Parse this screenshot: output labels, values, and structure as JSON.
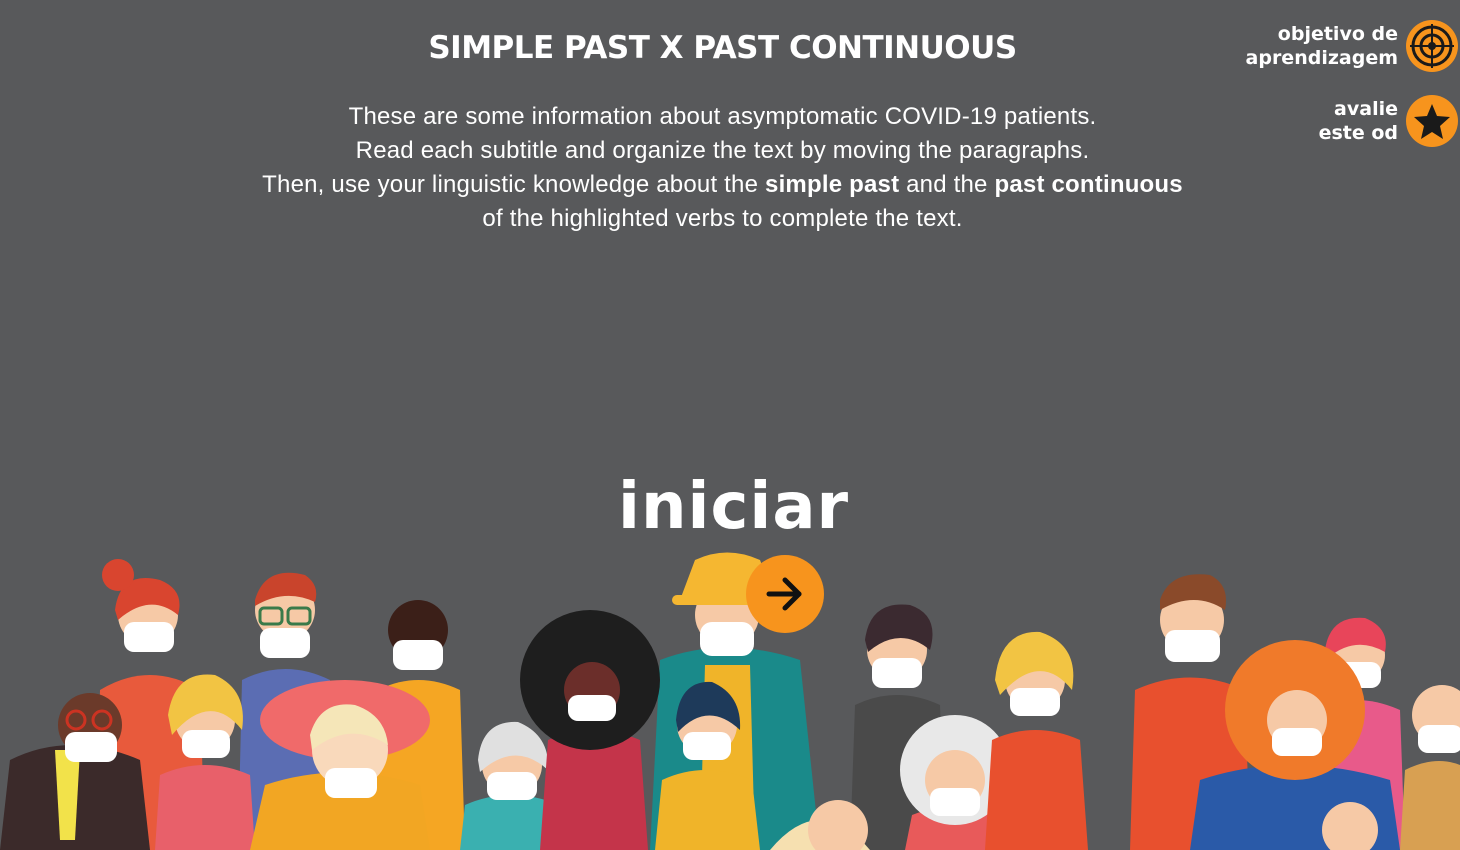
{
  "header": {
    "title": "SIMPLE PAST X PAST CONTINUOUS"
  },
  "instructions": {
    "line1": "These are some information about asymptomatic COVID-19 patients.",
    "line2": "Read each subtitle and organize the text by moving the paragraphs.",
    "line3_pre": "Then, use your linguistic knowledge about the ",
    "line3_bold1": "simple past",
    "line3_mid": " and the ",
    "line3_bold2": "past continuous",
    "line4": "of the highlighted verbs to complete the text."
  },
  "side_buttons": {
    "objective": {
      "line1": "objetivo de",
      "line2": "aprendizagem",
      "icon": "target-icon"
    },
    "rate": {
      "line1": "avalie",
      "line2": "este od",
      "icon": "star-icon"
    }
  },
  "start": {
    "label": "iniciar",
    "icon": "arrow-right-icon"
  },
  "colors": {
    "background": "#58595b",
    "accent": "#f7941d",
    "text": "#ffffff"
  }
}
